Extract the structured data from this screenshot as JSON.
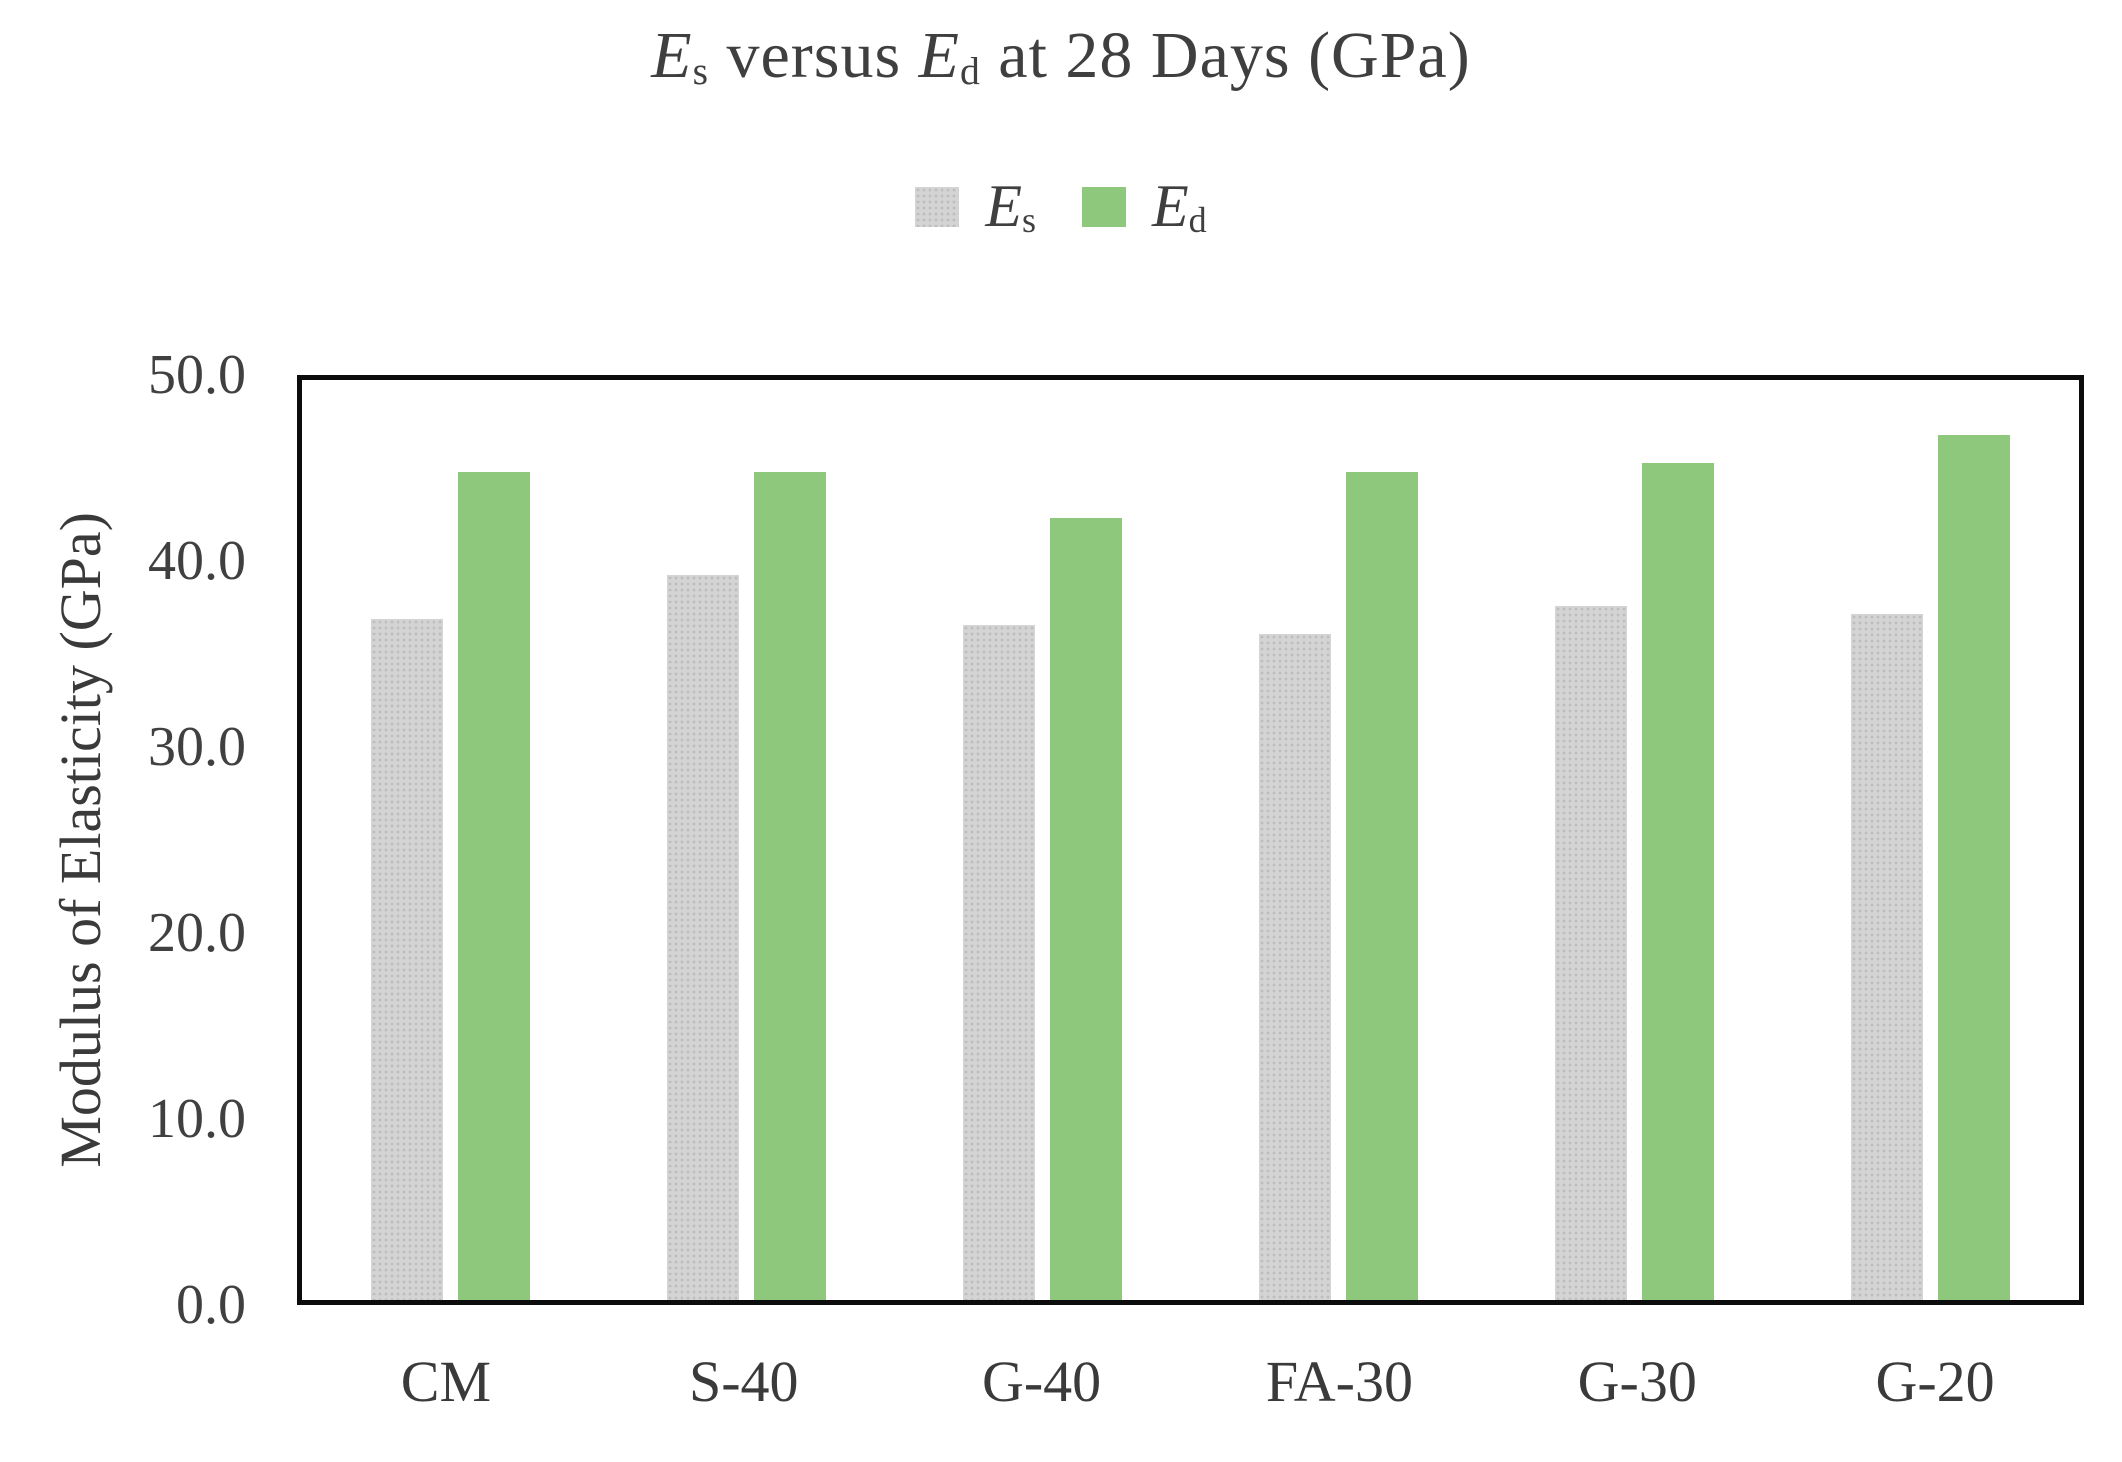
{
  "chart_data": {
    "type": "bar",
    "title": "Es versus Ed at 28 Days (GPa)",
    "title_parts": [
      {
        "text": "E",
        "style": "italic"
      },
      {
        "text": "s",
        "style": "sub"
      },
      {
        "text": " versus ",
        "style": "normal"
      },
      {
        "text": "E",
        "style": "italic"
      },
      {
        "text": "d",
        "style": "sub"
      },
      {
        "text": " at 28 Days (GPa)",
        "style": "normal"
      }
    ],
    "categories": [
      "CM",
      "S-40",
      "G-40",
      "FA-30",
      "G-30",
      "G-20"
    ],
    "series": [
      {
        "name": "Es",
        "label_base": "E",
        "label_sub": "s",
        "color": "#d4d4d4",
        "pattern": "dots",
        "values": [
          37.0,
          39.4,
          36.7,
          36.2,
          37.7,
          37.3
        ]
      },
      {
        "name": "Ed",
        "label_base": "E",
        "label_sub": "d",
        "color": "#8dc87d",
        "pattern": "solid",
        "values": [
          45.0,
          45.0,
          42.5,
          45.0,
          45.5,
          47.0
        ]
      }
    ],
    "xlabel": "",
    "ylabel": "Modulus of Elasticity (GPa)",
    "ylim": [
      0,
      50
    ],
    "yticks": [
      0,
      10,
      20,
      30,
      40,
      50
    ],
    "ytick_labels": [
      "0.0",
      "10.0",
      "20.0",
      "30.0",
      "40.0",
      "50.0"
    ],
    "grid": false,
    "legend_position": "top-center",
    "colors": {
      "bar_es": "#d4d4d4",
      "bar_ed": "#8dc87d",
      "axis_border": "#0c0c0c",
      "text": "#3f3f3f"
    }
  }
}
